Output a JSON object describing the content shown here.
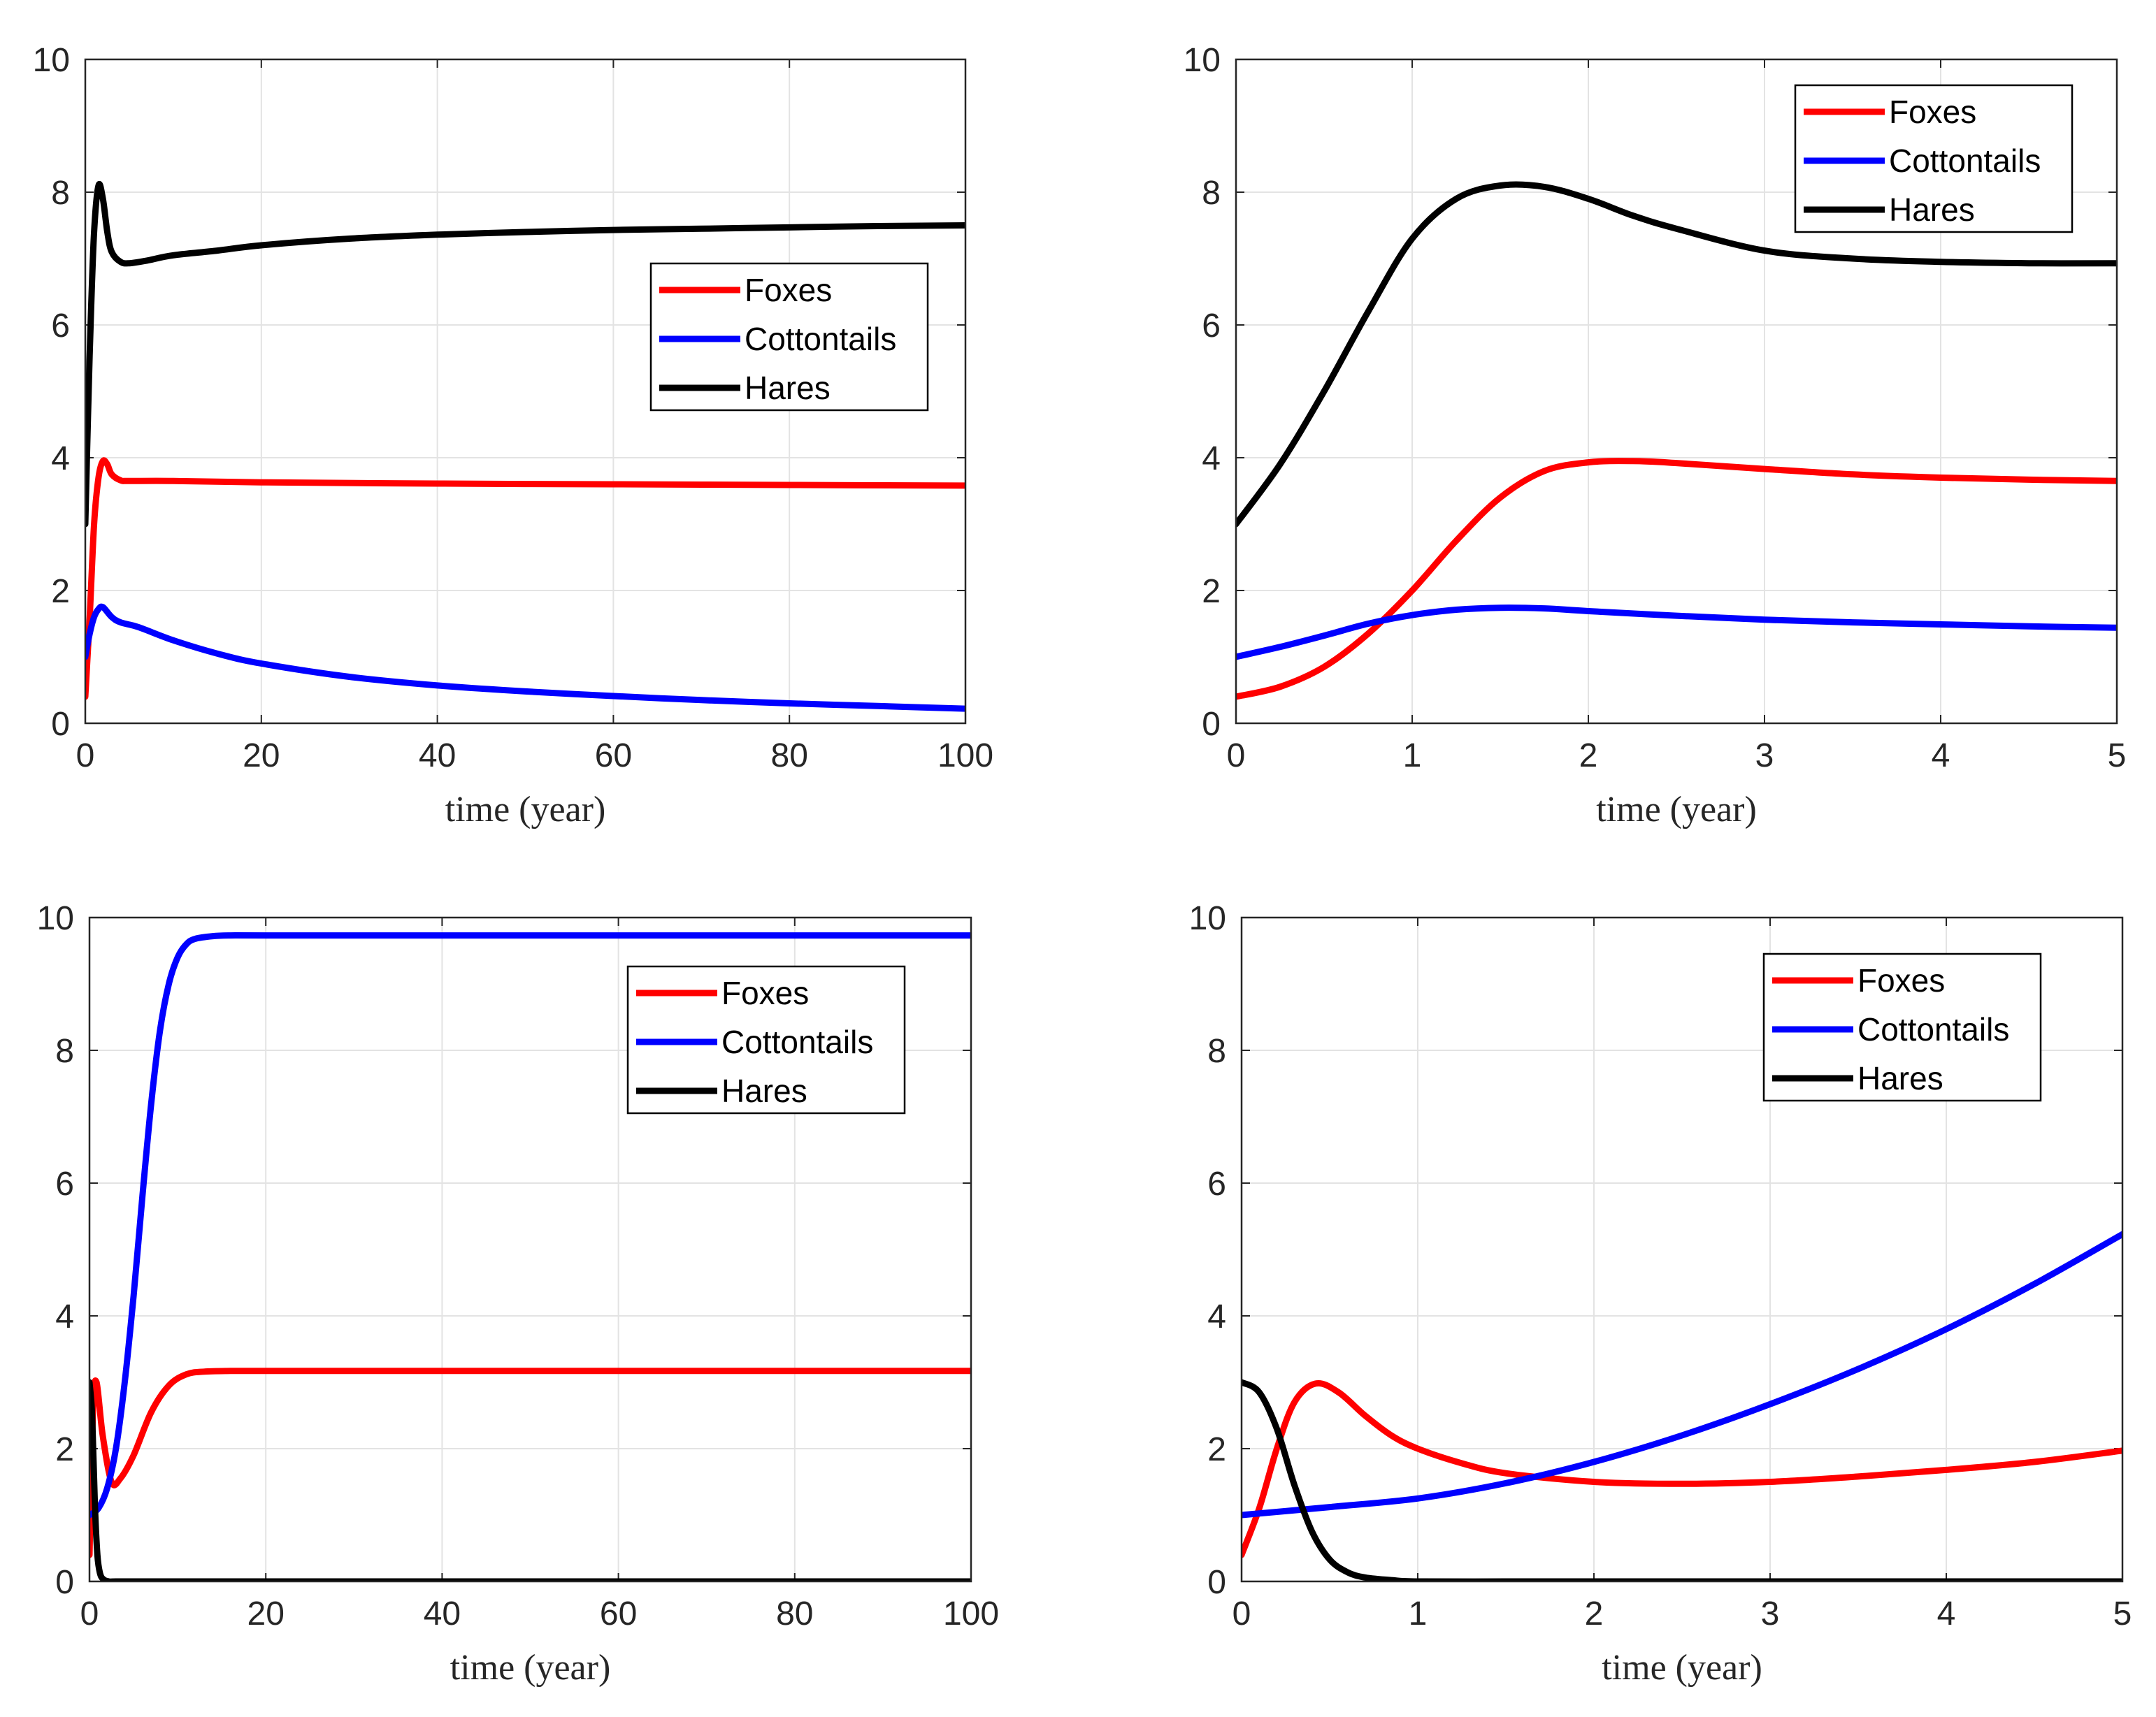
{
  "colors": {
    "Foxes": "#ff0000",
    "Cottontails": "#0000ff",
    "Hares": "#000000",
    "grid": "#e3e3e3",
    "axis": "#262626"
  },
  "chart_data": [
    {
      "type": "line",
      "panel": "top-left",
      "xlabel": "time (year)",
      "ylabel": "",
      "xlim": [
        0,
        100
      ],
      "ylim": [
        0,
        10
      ],
      "xticks": [
        0,
        20,
        40,
        60,
        80,
        100
      ],
      "yticks": [
        0,
        2,
        4,
        6,
        8,
        10
      ],
      "grid": true,
      "legend_position": "upper-right",
      "series": [
        {
          "name": "Foxes",
          "x": [
            0,
            0.5,
            1,
            1.5,
            2,
            2.5,
            3,
            4,
            5,
            10,
            20,
            40,
            60,
            80,
            100
          ],
          "y": [
            0.4,
            1.6,
            3.0,
            3.7,
            3.95,
            3.9,
            3.75,
            3.66,
            3.65,
            3.65,
            3.63,
            3.61,
            3.6,
            3.59,
            3.58
          ]
        },
        {
          "name": "Cottontails",
          "x": [
            0,
            0.5,
            1,
            1.5,
            2,
            3,
            4,
            6,
            10,
            15,
            20,
            30,
            40,
            50,
            60,
            70,
            80,
            90,
            100
          ],
          "y": [
            1.0,
            1.35,
            1.6,
            1.72,
            1.75,
            1.6,
            1.52,
            1.45,
            1.25,
            1.05,
            0.9,
            0.7,
            0.57,
            0.48,
            0.41,
            0.35,
            0.3,
            0.26,
            0.22
          ]
        },
        {
          "name": "Hares",
          "x": [
            0,
            0.3,
            0.6,
            1,
            1.5,
            2,
            2.5,
            3,
            4,
            5,
            7,
            10,
            15,
            20,
            30,
            40,
            50,
            60,
            70,
            80,
            90,
            100
          ],
          "y": [
            3.0,
            4.6,
            6.0,
            7.4,
            8.1,
            7.9,
            7.4,
            7.1,
            6.95,
            6.93,
            6.97,
            7.05,
            7.12,
            7.2,
            7.3,
            7.36,
            7.4,
            7.43,
            7.45,
            7.47,
            7.49,
            7.5
          ]
        }
      ],
      "legend": [
        "Foxes",
        "Cottontails",
        "Hares"
      ]
    },
    {
      "type": "line",
      "panel": "top-right",
      "xlabel": "time (year)",
      "ylabel": "",
      "xlim": [
        0,
        5
      ],
      "ylim": [
        0,
        10
      ],
      "xticks": [
        0,
        1,
        2,
        3,
        4,
        5
      ],
      "yticks": [
        0,
        2,
        4,
        6,
        8,
        10
      ],
      "grid": true,
      "legend_position": "upper-right",
      "series": [
        {
          "name": "Foxes",
          "x": [
            0,
            0.25,
            0.5,
            0.75,
            1.0,
            1.25,
            1.5,
            1.75,
            2.0,
            2.25,
            2.5,
            3.0,
            3.5,
            4.0,
            4.5,
            5.0
          ],
          "y": [
            0.4,
            0.55,
            0.85,
            1.35,
            2.0,
            2.75,
            3.4,
            3.8,
            3.93,
            3.95,
            3.92,
            3.83,
            3.75,
            3.7,
            3.67,
            3.65
          ]
        },
        {
          "name": "Cottontails",
          "x": [
            0,
            0.25,
            0.5,
            0.75,
            1.0,
            1.25,
            1.5,
            1.75,
            2.0,
            2.5,
            3.0,
            3.5,
            4.0,
            4.5,
            5.0
          ],
          "y": [
            1.0,
            1.15,
            1.32,
            1.5,
            1.63,
            1.71,
            1.74,
            1.73,
            1.69,
            1.62,
            1.56,
            1.52,
            1.49,
            1.46,
            1.44
          ]
        },
        {
          "name": "Hares",
          "x": [
            0,
            0.25,
            0.5,
            0.75,
            1.0,
            1.25,
            1.5,
            1.75,
            2.0,
            2.25,
            2.5,
            3.0,
            3.5,
            4.0,
            4.5,
            5.0
          ],
          "y": [
            3.0,
            3.9,
            5.0,
            6.2,
            7.3,
            7.9,
            8.1,
            8.08,
            7.9,
            7.65,
            7.45,
            7.12,
            7.0,
            6.95,
            6.93,
            6.93
          ]
        }
      ],
      "legend": [
        "Foxes",
        "Cottontails",
        "Hares"
      ]
    },
    {
      "type": "line",
      "panel": "bottom-left",
      "xlabel": "time (year)",
      "ylabel": "",
      "xlim": [
        0,
        100
      ],
      "ylim": [
        0,
        10
      ],
      "xticks": [
        0,
        20,
        40,
        60,
        80,
        100
      ],
      "yticks": [
        0,
        2,
        4,
        6,
        8,
        10
      ],
      "grid": true,
      "legend_position": "upper-right",
      "series": [
        {
          "name": "Foxes",
          "x": [
            0,
            0.4,
            0.8,
            1.5,
            2.5,
            3.5,
            5,
            7,
            9,
            11,
            13,
            16,
            20,
            40,
            60,
            80,
            100
          ],
          "y": [
            0.4,
            2.6,
            3.0,
            2.2,
            1.5,
            1.55,
            1.9,
            2.55,
            2.95,
            3.12,
            3.16,
            3.17,
            3.17,
            3.17,
            3.17,
            3.17,
            3.17
          ]
        },
        {
          "name": "Cottontails",
          "x": [
            0,
            1,
            2,
            3,
            4,
            5,
            6,
            7,
            8,
            9,
            10,
            11,
            12,
            14,
            16,
            20,
            40,
            60,
            80,
            100
          ],
          "y": [
            1.0,
            1.1,
            1.4,
            2.0,
            3.0,
            4.3,
            5.8,
            7.2,
            8.3,
            9.0,
            9.4,
            9.6,
            9.68,
            9.72,
            9.73,
            9.73,
            9.73,
            9.73,
            9.73,
            9.73
          ]
        },
        {
          "name": "Hares",
          "x": [
            0,
            0.3,
            0.6,
            0.9,
            1.2,
            1.6,
            2.2,
            3,
            5,
            20,
            40,
            60,
            80,
            100
          ],
          "y": [
            3.0,
            2.5,
            1.2,
            0.4,
            0.12,
            0.03,
            0.0,
            0.0,
            0.0,
            0.0,
            0.0,
            0.0,
            0.0,
            0.0
          ]
        }
      ],
      "legend": [
        "Foxes",
        "Cottontails",
        "Hares"
      ]
    },
    {
      "type": "line",
      "panel": "bottom-right",
      "xlabel": "time (year)",
      "ylabel": "",
      "xlim": [
        0,
        5
      ],
      "ylim": [
        0,
        10
      ],
      "xticks": [
        0,
        1,
        2,
        3,
        4,
        5
      ],
      "yticks": [
        0,
        2,
        4,
        6,
        8,
        10
      ],
      "grid": true,
      "legend_position": "upper-right",
      "series": [
        {
          "name": "Foxes",
          "x": [
            0,
            0.1,
            0.2,
            0.3,
            0.42,
            0.55,
            0.7,
            0.85,
            1.0,
            1.25,
            1.5,
            2.0,
            2.5,
            3.0,
            3.5,
            4.0,
            4.5,
            5.0
          ],
          "y": [
            0.4,
            1.1,
            2.0,
            2.7,
            2.98,
            2.85,
            2.5,
            2.2,
            2.0,
            1.78,
            1.63,
            1.5,
            1.47,
            1.5,
            1.58,
            1.68,
            1.8,
            1.97
          ]
        },
        {
          "name": "Cottontails",
          "x": [
            0,
            0.5,
            1.0,
            1.5,
            2.0,
            2.5,
            3.0,
            3.5,
            4.0,
            4.5,
            5.0
          ],
          "y": [
            1.0,
            1.12,
            1.25,
            1.48,
            1.8,
            2.2,
            2.67,
            3.2,
            3.8,
            4.48,
            5.23
          ]
        },
        {
          "name": "Hares",
          "x": [
            0,
            0.1,
            0.2,
            0.3,
            0.4,
            0.5,
            0.6,
            0.7,
            0.85,
            1.0,
            1.5,
            2.0,
            3.0,
            4.0,
            5.0
          ],
          "y": [
            3.0,
            2.85,
            2.3,
            1.45,
            0.75,
            0.33,
            0.14,
            0.06,
            0.02,
            0.0,
            0.0,
            0.0,
            0.0,
            0.0,
            0.0
          ]
        }
      ],
      "legend": [
        "Foxes",
        "Cottontails",
        "Hares"
      ]
    }
  ]
}
